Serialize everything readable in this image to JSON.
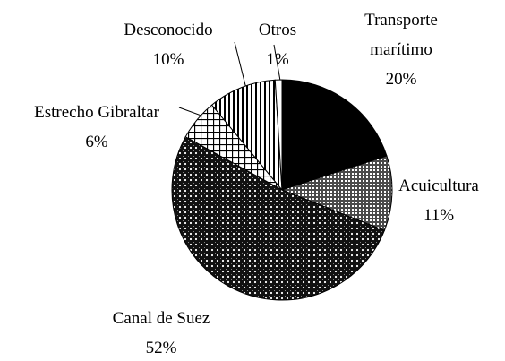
{
  "chart_data": {
    "type": "pie",
    "categories": [
      "Transporte marítimo",
      "Acuicultura",
      "Canal de Suez",
      "Estrecho Gibraltar",
      "Desconocido",
      "Otros"
    ],
    "values": [
      20,
      11,
      52,
      6,
      10,
      1
    ],
    "value_labels": [
      "20%",
      "11%",
      "52%",
      "6%",
      "10%",
      "1%"
    ],
    "patterns": [
      "solid",
      "grid-dots",
      "dots",
      "crosshatch",
      "vertical-stripes",
      "none"
    ]
  }
}
